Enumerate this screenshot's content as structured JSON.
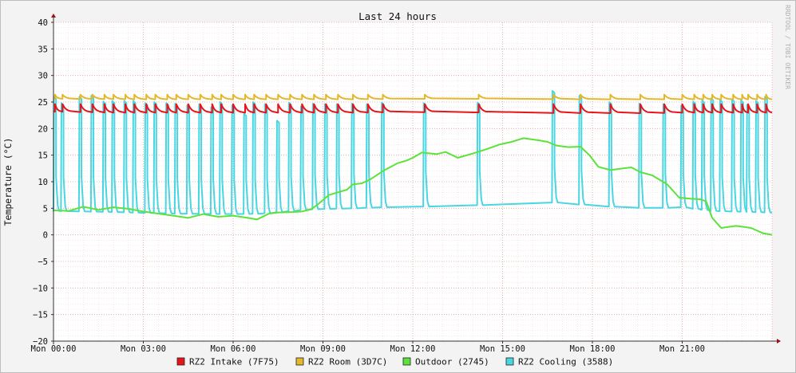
{
  "chart_data": {
    "type": "line",
    "title": "Last 24 hours",
    "ylabel": "Temperature (°C)",
    "watermark": "RRDTOOL / TOBI OETIKER",
    "ylim": [
      -20,
      40
    ],
    "xlim": [
      0,
      24
    ],
    "y_ticks": [
      40,
      35,
      30,
      25,
      20,
      15,
      10,
      5,
      0,
      -5,
      -10,
      -15,
      -20
    ],
    "x_ticks": [
      {
        "x": 0,
        "label": "Mon 00:00"
      },
      {
        "x": 3,
        "label": "Mon 03:00"
      },
      {
        "x": 6,
        "label": "Mon 06:00"
      },
      {
        "x": 9,
        "label": "Mon 09:00"
      },
      {
        "x": 12,
        "label": "Mon 12:00"
      },
      {
        "x": 15,
        "label": "Mon 15:00"
      },
      {
        "x": 18,
        "label": "Mon 18:00"
      },
      {
        "x": 21,
        "label": "Mon 21:00"
      }
    ],
    "grid": true,
    "legend_position": "bottom",
    "series": [
      {
        "name": "RZ2 Intake (7F75)",
        "color": "#e8141a",
        "pattern": "sawtooth",
        "cycles": [
          0.05,
          0.3,
          0.9,
          1.3,
          1.7,
          2.0,
          2.4,
          2.7,
          3.1,
          3.4,
          3.8,
          4.1,
          4.5,
          4.9,
          5.3,
          5.6,
          6.0,
          6.4,
          6.7,
          7.1,
          7.5,
          7.9,
          8.3,
          8.7,
          9.1,
          9.5,
          10.0,
          10.5,
          11.0,
          12.4,
          14.2,
          16.7,
          17.6,
          18.6,
          19.6,
          20.4,
          21.0,
          21.4,
          21.7,
          22.0,
          22.3,
          22.7,
          23.0,
          23.2,
          23.5,
          23.8
        ],
        "points": [
          [
            0,
            23.2
          ],
          [
            2,
            23.0
          ],
          [
            6,
            23.0
          ],
          [
            10,
            23.0
          ],
          [
            12,
            23.1
          ],
          [
            15,
            23.0
          ],
          [
            18,
            22.9
          ],
          [
            20,
            22.9
          ],
          [
            21,
            23.0
          ],
          [
            24,
            23.0
          ]
        ],
        "peak": 24.6
      },
      {
        "name": "RZ2 Room (3D7C)",
        "color": "#e5b72b",
        "pattern": "sawtooth",
        "cycles": [
          0.05,
          0.3,
          0.9,
          1.3,
          1.7,
          2.0,
          2.4,
          2.7,
          3.1,
          3.4,
          3.8,
          4.1,
          4.5,
          4.9,
          5.3,
          5.6,
          6.0,
          6.4,
          6.7,
          7.1,
          7.5,
          7.9,
          8.3,
          8.7,
          9.1,
          9.5,
          10.0,
          10.5,
          11.0,
          12.4,
          14.2,
          16.7,
          17.6,
          18.6,
          19.6,
          20.4,
          21.0,
          21.4,
          21.7,
          22.0,
          22.3,
          22.7,
          23.0,
          23.2,
          23.5,
          23.8
        ],
        "points": [
          [
            0,
            25.6
          ],
          [
            3,
            25.5
          ],
          [
            6,
            25.5
          ],
          [
            10,
            25.5
          ],
          [
            12,
            25.6
          ],
          [
            15,
            25.6
          ],
          [
            18,
            25.5
          ],
          [
            20,
            25.5
          ],
          [
            24,
            25.5
          ]
        ],
        "peak": 26.4
      },
      {
        "name": "Outdoor (2745)",
        "color": "#5ce23a",
        "pattern": "line",
        "points": [
          [
            0,
            4.6
          ],
          [
            0.5,
            4.5
          ],
          [
            1.0,
            5.3
          ],
          [
            1.5,
            4.7
          ],
          [
            2.0,
            5.2
          ],
          [
            2.5,
            4.9
          ],
          [
            3.0,
            4.4
          ],
          [
            3.5,
            4.0
          ],
          [
            4.0,
            3.6
          ],
          [
            4.5,
            3.2
          ],
          [
            5.0,
            3.9
          ],
          [
            5.5,
            3.4
          ],
          [
            6.0,
            3.6
          ],
          [
            6.5,
            3.2
          ],
          [
            6.8,
            2.9
          ],
          [
            7.2,
            4.0
          ],
          [
            7.5,
            4.2
          ],
          [
            8.0,
            4.3
          ],
          [
            8.3,
            4.4
          ],
          [
            8.6,
            4.8
          ],
          [
            8.8,
            5.6
          ],
          [
            9.2,
            7.5
          ],
          [
            9.5,
            8.0
          ],
          [
            9.8,
            8.5
          ],
          [
            10.0,
            9.5
          ],
          [
            10.3,
            9.7
          ],
          [
            10.6,
            10.5
          ],
          [
            11.0,
            12.0
          ],
          [
            11.5,
            13.5
          ],
          [
            11.8,
            14.0
          ],
          [
            12.0,
            14.5
          ],
          [
            12.3,
            15.5
          ],
          [
            12.8,
            15.2
          ],
          [
            13.1,
            15.6
          ],
          [
            13.5,
            14.5
          ],
          [
            14.0,
            15.3
          ],
          [
            14.5,
            16.2
          ],
          [
            14.9,
            17.0
          ],
          [
            15.3,
            17.5
          ],
          [
            15.7,
            18.2
          ],
          [
            16.2,
            17.8
          ],
          [
            16.5,
            17.5
          ],
          [
            16.8,
            16.8
          ],
          [
            17.2,
            16.5
          ],
          [
            17.6,
            16.6
          ],
          [
            17.9,
            15.0
          ],
          [
            18.2,
            12.8
          ],
          [
            18.6,
            12.2
          ],
          [
            19.0,
            12.5
          ],
          [
            19.3,
            12.7
          ],
          [
            19.6,
            11.8
          ],
          [
            20.0,
            11.2
          ],
          [
            20.5,
            9.5
          ],
          [
            20.9,
            7.0
          ],
          [
            21.3,
            6.8
          ],
          [
            21.6,
            6.7
          ],
          [
            21.8,
            6.3
          ],
          [
            22.0,
            3.2
          ],
          [
            22.3,
            1.3
          ],
          [
            22.8,
            1.7
          ],
          [
            23.3,
            1.3
          ],
          [
            23.7,
            0.3
          ],
          [
            24.0,
            0.0
          ]
        ]
      },
      {
        "name": "RZ2 Cooling (3588)",
        "color": "#49d6e3",
        "pattern": "spikes",
        "spikes": [
          [
            0.05,
            26.0
          ],
          [
            0.3,
            24.8
          ],
          [
            0.9,
            26.0
          ],
          [
            1.3,
            26.2
          ],
          [
            1.7,
            25.1
          ],
          [
            2.0,
            25.2
          ],
          [
            2.4,
            25.2
          ],
          [
            2.7,
            25.2
          ],
          [
            3.1,
            24.8
          ],
          [
            3.4,
            25.0
          ],
          [
            3.8,
            24.8
          ],
          [
            4.1,
            24.7
          ],
          [
            4.5,
            24.4
          ],
          [
            4.9,
            24.6
          ],
          [
            5.3,
            24.0
          ],
          [
            5.6,
            25.0
          ],
          [
            6.0,
            24.4
          ],
          [
            6.4,
            22.8
          ],
          [
            6.7,
            25.0
          ],
          [
            7.1,
            24.6
          ],
          [
            7.5,
            21.5
          ],
          [
            7.9,
            24.9
          ],
          [
            8.3,
            24.2
          ],
          [
            8.7,
            24.7
          ],
          [
            9.1,
            24.6
          ],
          [
            9.5,
            24.6
          ],
          [
            10.0,
            24.7
          ],
          [
            10.5,
            24.6
          ],
          [
            11.0,
            24.9
          ],
          [
            12.4,
            24.8
          ],
          [
            14.2,
            24.9
          ],
          [
            16.7,
            27.1
          ],
          [
            17.6,
            26.2
          ],
          [
            18.6,
            25.0
          ],
          [
            19.6,
            24.7
          ],
          [
            20.4,
            24.6
          ],
          [
            21.0,
            24.3
          ],
          [
            21.4,
            25.1
          ],
          [
            21.7,
            25.3
          ],
          [
            22.0,
            25.7
          ],
          [
            22.3,
            25.4
          ],
          [
            22.7,
            25.5
          ],
          [
            23.0,
            25.3
          ],
          [
            23.2,
            24.5
          ],
          [
            23.5,
            25.2
          ],
          [
            23.8,
            26.0
          ]
        ],
        "baseline": [
          [
            0,
            4.5
          ],
          [
            2,
            4.3
          ],
          [
            4,
            4.0
          ],
          [
            6,
            3.9
          ],
          [
            7,
            4.0
          ],
          [
            8.5,
            4.8
          ],
          [
            10,
            5.0
          ],
          [
            11,
            5.2
          ],
          [
            12,
            5.3
          ],
          [
            14,
            5.5
          ],
          [
            15,
            6.0
          ],
          [
            16,
            6.3
          ],
          [
            17,
            6.0
          ],
          [
            18,
            5.5
          ],
          [
            19,
            5.2
          ],
          [
            20,
            5.0
          ],
          [
            21,
            5.2
          ],
          [
            22,
            4.5
          ],
          [
            24,
            4.2
          ]
        ]
      }
    ]
  }
}
